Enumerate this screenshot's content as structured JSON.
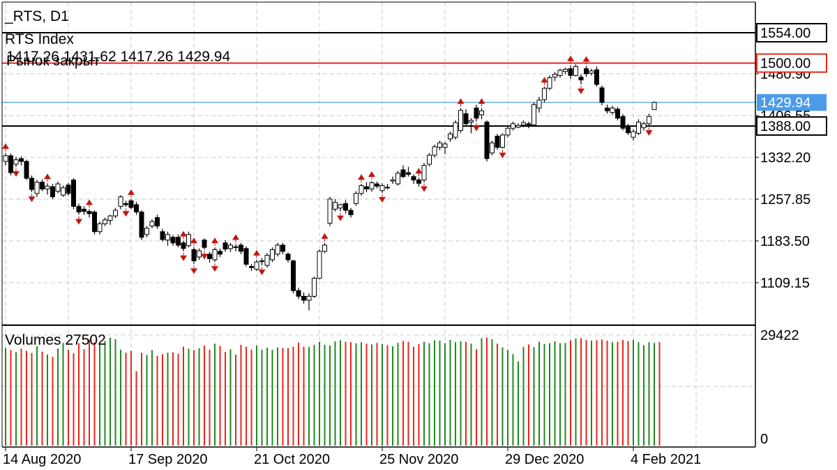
{
  "chart_data": {
    "type": "candlestick",
    "header": {
      "symbol_timeframe": "_RTS, D1",
      "instrument_name": "RTS Index",
      "ohlc_text": "1417.26 1431.62 1417.26 1429.94",
      "market_status": "Рынок закрыт"
    },
    "y_ticks": [
      "1480.90",
      "1406.55",
      "1332.20",
      "1257.85",
      "1183.50",
      "1109.15"
    ],
    "price_lines": [
      {
        "value": 1554.0,
        "label": "1554.00",
        "color": "#000000",
        "style": "solid"
      },
      {
        "value": 1500.0,
        "label": "1500.00",
        "color": "#e8251c",
        "style": "solid"
      },
      {
        "value": 1429.94,
        "label": "1429.94",
        "color": "#4c9be8",
        "style": "current"
      },
      {
        "value": 1388.0,
        "label": "1388.00",
        "color": "#000000",
        "style": "solid"
      }
    ],
    "x_ticks": [
      {
        "index": 0,
        "label": "14 Aug 2020"
      },
      {
        "index": 24,
        "label": "17 Sep 2020"
      },
      {
        "index": 48,
        "label": "21 Oct 2020"
      },
      {
        "index": 72,
        "label": "25 Nov 2020"
      },
      {
        "index": 96,
        "label": "29 Dec 2020"
      },
      {
        "index": 120,
        "label": "4 Feb 2021"
      }
    ],
    "candles": [
      [
        1325,
        1340,
        1318,
        1335
      ],
      [
        1335,
        1339,
        1300,
        1305
      ],
      [
        1320,
        1333,
        1315,
        1328
      ],
      [
        1330,
        1334,
        1318,
        1325
      ],
      [
        1325,
        1328,
        1292,
        1295
      ],
      [
        1295,
        1300,
        1270,
        1275
      ],
      [
        1268,
        1292,
        1262,
        1288
      ],
      [
        1288,
        1293,
        1272,
        1276
      ],
      [
        1276,
        1286,
        1266,
        1281
      ],
      [
        1280,
        1285,
        1258,
        1262
      ],
      [
        1272,
        1289,
        1268,
        1285
      ],
      [
        1265,
        1282,
        1262,
        1278
      ],
      [
        1283,
        1287,
        1264,
        1268
      ],
      [
        1292,
        1295,
        1240,
        1245
      ],
      [
        1245,
        1250,
        1230,
        1235
      ],
      [
        1240,
        1245,
        1230,
        1236
      ],
      [
        1236,
        1240,
        1225,
        1232
      ],
      [
        1235,
        1238,
        1195,
        1200
      ],
      [
        1200,
        1218,
        1195,
        1214
      ],
      [
        1214,
        1225,
        1210,
        1221
      ],
      [
        1220,
        1230,
        1212,
        1228
      ],
      [
        1228,
        1242,
        1224,
        1238
      ],
      [
        1245,
        1265,
        1240,
        1262
      ],
      [
        1250,
        1255,
        1244,
        1248
      ],
      [
        1255,
        1258,
        1240,
        1243
      ],
      [
        1248,
        1253,
        1230,
        1235
      ],
      [
        1235,
        1238,
        1185,
        1190
      ],
      [
        1195,
        1210,
        1190,
        1206
      ],
      [
        1210,
        1222,
        1206,
        1218
      ],
      [
        1225,
        1230,
        1205,
        1210
      ],
      [
        1200,
        1205,
        1182,
        1186
      ],
      [
        1185,
        1200,
        1175,
        1195
      ],
      [
        1190,
        1194,
        1175,
        1180
      ],
      [
        1190,
        1195,
        1172,
        1176
      ],
      [
        1180,
        1184,
        1165,
        1170
      ],
      [
        1175,
        1200,
        1172,
        1195
      ],
      [
        1168,
        1172,
        1142,
        1148
      ],
      [
        1155,
        1170,
        1150,
        1166
      ],
      [
        1185,
        1188,
        1168,
        1172
      ],
      [
        1160,
        1164,
        1145,
        1152
      ],
      [
        1150,
        1172,
        1146,
        1168
      ],
      [
        1165,
        1170,
        1155,
        1160
      ],
      [
        1180,
        1185,
        1164,
        1169
      ],
      [
        1170,
        1180,
        1164,
        1176
      ],
      [
        1173,
        1178,
        1165,
        1172
      ],
      [
        1176,
        1180,
        1160,
        1165
      ],
      [
        1170,
        1174,
        1138,
        1142
      ],
      [
        1138,
        1142,
        1130,
        1136
      ],
      [
        1133,
        1150,
        1130,
        1146
      ],
      [
        1148,
        1153,
        1140,
        1148
      ],
      [
        1140,
        1162,
        1136,
        1158
      ],
      [
        1150,
        1172,
        1146,
        1168
      ],
      [
        1160,
        1180,
        1156,
        1176
      ],
      [
        1176,
        1180,
        1160,
        1165
      ],
      [
        1160,
        1163,
        1145,
        1150
      ],
      [
        1148,
        1150,
        1090,
        1095
      ],
      [
        1095,
        1100,
        1080,
        1085
      ],
      [
        1085,
        1092,
        1072,
        1078
      ],
      [
        1078,
        1090,
        1060,
        1085
      ],
      [
        1085,
        1120,
        1082,
        1117
      ],
      [
        1117,
        1168,
        1115,
        1165
      ],
      [
        1165,
        1180,
        1162,
        1176
      ],
      [
        1215,
        1262,
        1210,
        1258
      ],
      [
        1240,
        1258,
        1236,
        1252
      ],
      [
        1242,
        1250,
        1236,
        1248
      ],
      [
        1250,
        1256,
        1232,
        1238
      ],
      [
        1238,
        1242,
        1225,
        1230
      ],
      [
        1250,
        1272,
        1246,
        1268
      ],
      [
        1268,
        1285,
        1264,
        1282
      ],
      [
        1280,
        1288,
        1270,
        1276
      ],
      [
        1276,
        1290,
        1271,
        1287
      ],
      [
        1285,
        1289,
        1277,
        1281
      ],
      [
        1273,
        1286,
        1269,
        1282
      ],
      [
        1279,
        1285,
        1275,
        1278
      ],
      [
        1290,
        1298,
        1285,
        1292
      ],
      [
        1285,
        1308,
        1282,
        1304
      ],
      [
        1310,
        1318,
        1295,
        1298
      ],
      [
        1305,
        1315,
        1298,
        1302
      ],
      [
        1298,
        1302,
        1285,
        1292
      ],
      [
        1292,
        1296,
        1280,
        1286
      ],
      [
        1292,
        1322,
        1288,
        1318
      ],
      [
        1320,
        1340,
        1316,
        1336
      ],
      [
        1336,
        1355,
        1332,
        1351
      ],
      [
        1350,
        1362,
        1345,
        1358
      ],
      [
        1350,
        1360,
        1338,
        1356
      ],
      [
        1365,
        1378,
        1360,
        1374
      ],
      [
        1368,
        1398,
        1364,
        1394
      ],
      [
        1380,
        1420,
        1376,
        1416
      ],
      [
        1410,
        1418,
        1388,
        1392
      ],
      [
        1395,
        1402,
        1375,
        1398
      ],
      [
        1420,
        1426,
        1396,
        1402
      ],
      [
        1408,
        1420,
        1400,
        1415
      ],
      [
        1395,
        1398,
        1325,
        1330
      ],
      [
        1340,
        1362,
        1336,
        1358
      ],
      [
        1370,
        1374,
        1346,
        1350
      ],
      [
        1350,
        1375,
        1348,
        1372
      ],
      [
        1372,
        1388,
        1368,
        1384
      ],
      [
        1384,
        1396,
        1380,
        1392
      ],
      [
        1386,
        1393,
        1384,
        1389
      ],
      [
        1390,
        1398,
        1386,
        1394
      ],
      [
        1392,
        1396,
        1384,
        1390
      ],
      [
        1390,
        1430,
        1388,
        1426
      ],
      [
        1420,
        1440,
        1412,
        1434
      ],
      [
        1435,
        1458,
        1430,
        1455
      ],
      [
        1455,
        1478,
        1452,
        1474
      ],
      [
        1475,
        1484,
        1468,
        1480
      ],
      [
        1478,
        1490,
        1474,
        1487
      ],
      [
        1485,
        1492,
        1480,
        1489
      ],
      [
        1490,
        1496,
        1472,
        1478
      ],
      [
        1478,
        1498,
        1476,
        1494
      ],
      [
        1475,
        1480,
        1462,
        1470
      ],
      [
        1490,
        1495,
        1476,
        1481
      ],
      [
        1482,
        1490,
        1478,
        1486
      ],
      [
        1488,
        1494,
        1458,
        1462
      ],
      [
        1456,
        1460,
        1425,
        1430
      ],
      [
        1420,
        1426,
        1410,
        1415
      ],
      [
        1412,
        1424,
        1408,
        1420
      ],
      [
        1418,
        1422,
        1398,
        1402
      ],
      [
        1405,
        1409,
        1380,
        1384
      ],
      [
        1388,
        1392,
        1372,
        1376
      ],
      [
        1368,
        1382,
        1362,
        1378
      ],
      [
        1375,
        1400,
        1372,
        1395
      ],
      [
        1385,
        1396,
        1380,
        1392
      ],
      [
        1392,
        1410,
        1388,
        1405
      ],
      [
        1417.26,
        1431.62,
        1417.26,
        1429.94
      ]
    ],
    "fractals_up": [
      0,
      8,
      16,
      24,
      34,
      36,
      40,
      44,
      48,
      61,
      68,
      70,
      79,
      87,
      91,
      103,
      108,
      111
    ],
    "fractals_down": [
      2,
      5,
      14,
      23,
      34,
      36,
      38,
      40,
      49,
      64,
      72,
      80,
      90,
      95,
      110,
      123
    ],
    "volumes": {
      "indicator_label": "Volumes 27502",
      "y_max_label": "29422",
      "y_min_label": "0",
      "max": 29422,
      "values": [
        26000,
        25400,
        24800,
        25800,
        25200,
        24600,
        26400,
        25000,
        24200,
        23600,
        25800,
        27300,
        25500,
        24500,
        27200,
        25600,
        28200,
        27400,
        26800,
        27800,
        28700,
        28300,
        25500,
        24700,
        25200,
        19800,
        24700,
        24100,
        25400,
        23900,
        24300,
        24700,
        24800,
        24400,
        26300,
        25800,
        25400,
        25900,
        26600,
        25500,
        27100,
        26500,
        24900,
        25600,
        24200,
        26800,
        26300,
        25500,
        26600,
        25500,
        26000,
        25500,
        26100,
        26000,
        25900,
        26300,
        27400,
        26300,
        26200,
        26800,
        27600,
        26800,
        26600,
        27700,
        28000,
        27600,
        27500,
        27200,
        27500,
        27100,
        26900,
        27300,
        27000,
        26700,
        26400,
        27300,
        27800,
        27600,
        26300,
        27000,
        27600,
        27200,
        28000,
        27900,
        27200,
        28100,
        27500,
        27700,
        27600,
        27100,
        25600,
        28600,
        28700,
        28300,
        27100,
        26100,
        25500,
        24300,
        22400,
        26200,
        26900,
        26200,
        27600,
        27000,
        27200,
        27700,
        27200,
        27300,
        28000,
        28500,
        28600,
        28100,
        27900,
        28000,
        28200,
        27900,
        27500,
        27600,
        28100,
        27800,
        28100,
        27500,
        26700,
        27500,
        27300,
        27502
      ]
    }
  }
}
